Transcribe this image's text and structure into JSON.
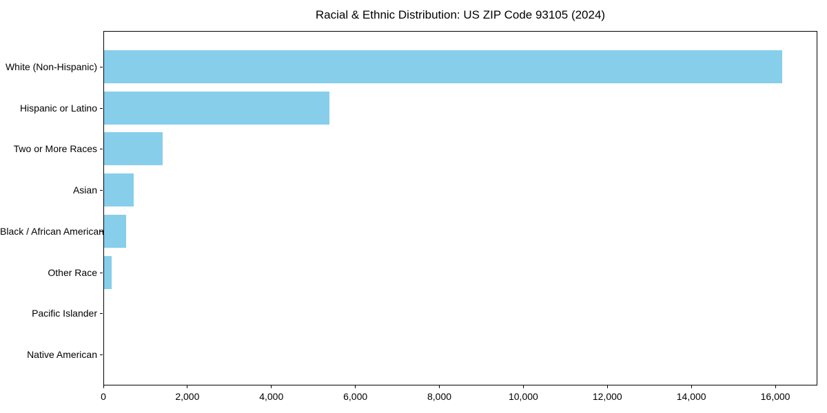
{
  "chart_data": {
    "type": "bar",
    "orientation": "horizontal",
    "title": "Racial & Ethnic Distribution: US ZIP Code 93105 (2024)",
    "categories": [
      "White (Non-Hispanic)",
      "Hispanic or Latino",
      "Two or More Races",
      "Asian",
      "Black / African American",
      "Other Race",
      "Pacific Islander",
      "Native American"
    ],
    "values": [
      16150,
      5360,
      1400,
      710,
      520,
      180,
      0,
      0
    ],
    "xlabel": "",
    "ylabel": "",
    "xlim": [
      0,
      17000
    ],
    "xticks": [
      0,
      2000,
      4000,
      6000,
      8000,
      10000,
      12000,
      14000,
      16000
    ],
    "xtick_labels": [
      "0",
      "2,000",
      "4,000",
      "6,000",
      "8,000",
      "10,000",
      "12,000",
      "14,000",
      "16,000"
    ],
    "grid": false,
    "legend": "none",
    "bar_color": "#87CEEB",
    "axis_color": "#000000",
    "background_color": "#ffffff"
  }
}
